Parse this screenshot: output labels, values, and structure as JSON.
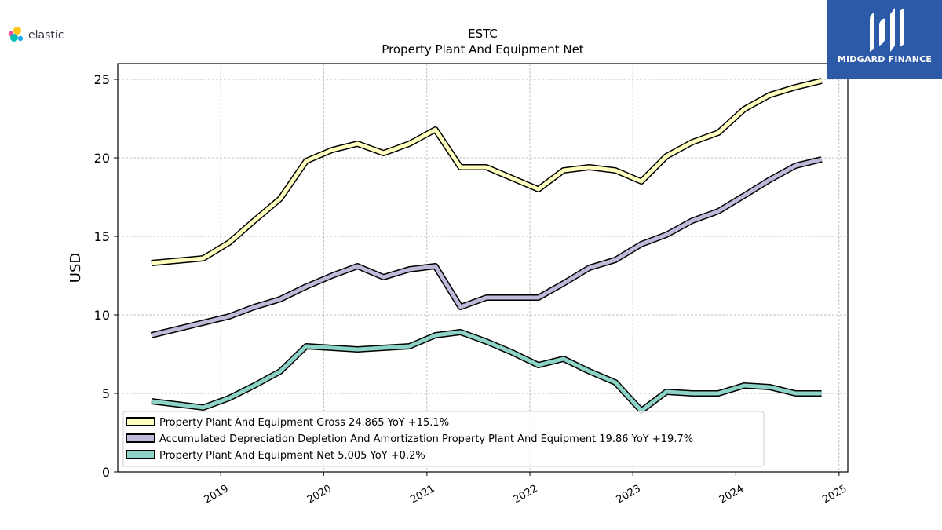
{
  "brand": {
    "left_logo_text": "elastic",
    "right_logo_text": "MIDGARD FINANCE",
    "right_logo_bg": "#2c5aa8"
  },
  "chart_data": {
    "type": "line",
    "title": "ESTC",
    "subtitle": "Property Plant And Equipment Net",
    "xlabel": "",
    "ylabel": "USD",
    "ylim": [
      0,
      26
    ],
    "xlim": [
      "2018-01-01",
      "2025-02-01"
    ],
    "yticks": [
      0,
      5,
      10,
      15,
      20,
      25
    ],
    "xticks": [
      "2019",
      "2020",
      "2021",
      "2022",
      "2023",
      "2024",
      "2025"
    ],
    "grid": true,
    "legend_position": "lower-left",
    "x": [
      "2018-04-30",
      "2018-10-31",
      "2019-01-31",
      "2019-04-30",
      "2019-07-31",
      "2019-10-31",
      "2020-01-31",
      "2020-04-30",
      "2020-07-31",
      "2020-10-31",
      "2021-01-31",
      "2021-04-30",
      "2021-07-31",
      "2021-10-31",
      "2022-01-31",
      "2022-04-30",
      "2022-07-31",
      "2022-10-31",
      "2023-01-31",
      "2023-04-30",
      "2023-07-31",
      "2023-10-31",
      "2024-01-31",
      "2024-04-30",
      "2024-07-31",
      "2024-10-31"
    ],
    "series": [
      {
        "name": "Property Plant And Equipment Gross",
        "legend_label": "Property Plant And Equipment Gross  24.865 YoY +15.1%",
        "color": "#ffffbf",
        "values": [
          13.3,
          13.6,
          14.6,
          16.0,
          17.4,
          19.8,
          20.5,
          20.9,
          20.3,
          20.9,
          21.8,
          19.4,
          19.4,
          18.7,
          18.0,
          19.2,
          19.4,
          19.2,
          18.5,
          20.1,
          21.0,
          21.6,
          23.1,
          24.0,
          24.5,
          24.9
        ]
      },
      {
        "name": "Accumulated Depreciation Depletion And Amortization Property Plant And Equipment",
        "legend_label": "Accumulated Depreciation Depletion And Amortization Property Plant And Equipment  19.86 YoY +19.7%",
        "color": "#bebada",
        "values": [
          8.7,
          9.5,
          9.9,
          10.5,
          11.0,
          11.8,
          12.5,
          13.1,
          12.4,
          12.9,
          13.1,
          10.5,
          11.1,
          11.1,
          11.1,
          12.0,
          13.0,
          13.5,
          14.5,
          15.1,
          16.0,
          16.6,
          17.6,
          18.6,
          19.5,
          19.9
        ]
      },
      {
        "name": "Property Plant And Equipment Net",
        "legend_label": "Property Plant And Equipment Net  5.005 YoY +0.2%",
        "color": "#8dd3c7",
        "values": [
          4.5,
          4.1,
          4.7,
          5.5,
          6.4,
          8.0,
          7.9,
          7.8,
          7.9,
          8.0,
          8.7,
          8.9,
          8.3,
          7.6,
          6.8,
          7.2,
          6.4,
          5.7,
          3.9,
          5.1,
          5.0,
          5.0,
          5.5,
          5.4,
          5.0,
          5.0
        ]
      }
    ]
  }
}
